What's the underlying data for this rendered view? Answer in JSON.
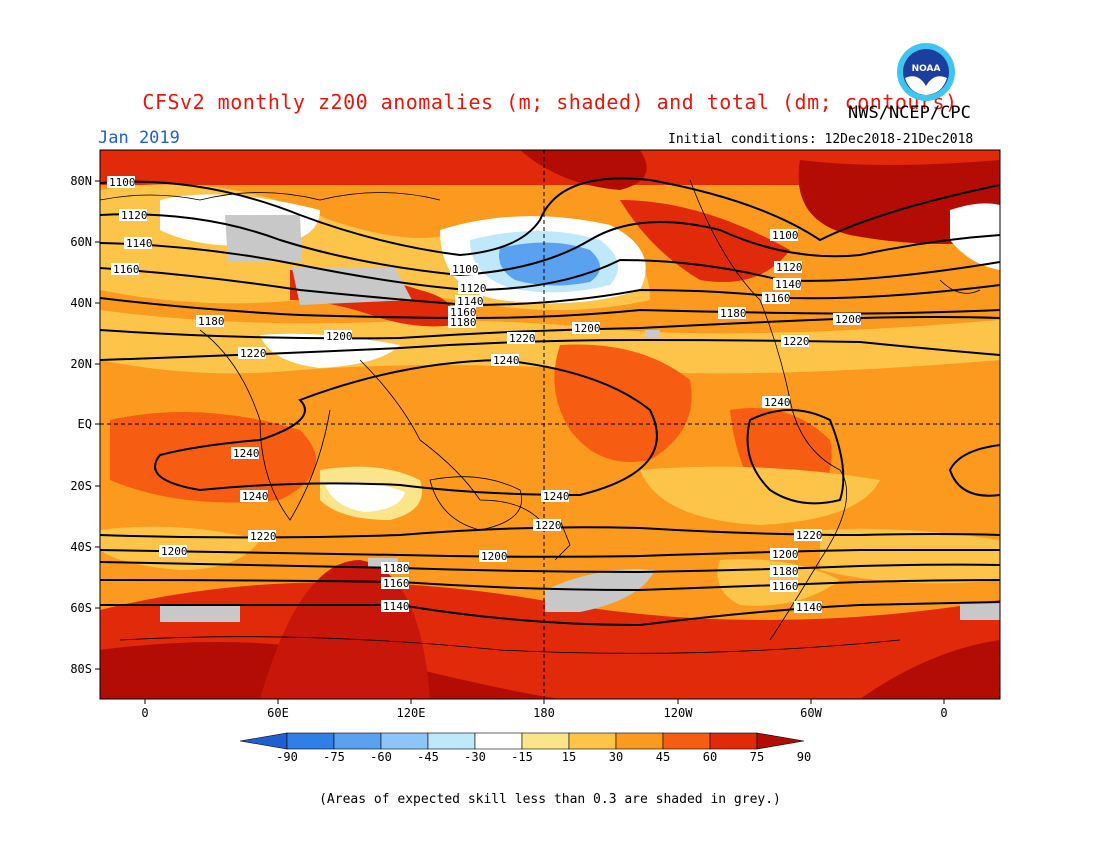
{
  "title": "CFSv2 monthly z200 anomalies (m; shaded) and total (dm; contours)",
  "month": "Jan 2019",
  "agency": "NWS/NCEP/CPC",
  "initial_conditions": "Initial conditions: 12Dec2018-21Dec2018",
  "footnote": "(Areas of expected skill less than 0.3 are shaded in grey.)",
  "lat_labels": [
    "80N",
    "60N",
    "40N",
    "20N",
    "EQ",
    "20S",
    "40S",
    "60S",
    "80S"
  ],
  "lon_labels": [
    "0",
    "60E",
    "120E",
    "180",
    "120W",
    "60W",
    "0"
  ],
  "colorbar": {
    "ticks": [
      "-90",
      "-75",
      "-60",
      "-45",
      "-30",
      "-15",
      "15",
      "30",
      "45",
      "60",
      "75",
      "90"
    ],
    "colors": [
      "#1f5fd0",
      "#2f7fe6",
      "#5aa2f0",
      "#8cc6f6",
      "#bfe8fb",
      "#ffffff",
      "#fbe58a",
      "#fcc54a",
      "#fb9a1e",
      "#f75d12",
      "#e02a0a",
      "#b30c04"
    ]
  },
  "contour_labels": [
    "1100",
    "1120",
    "1140",
    "1160",
    "1180",
    "1200",
    "1220",
    "1240"
  ],
  "logo_text": "NOAA"
}
